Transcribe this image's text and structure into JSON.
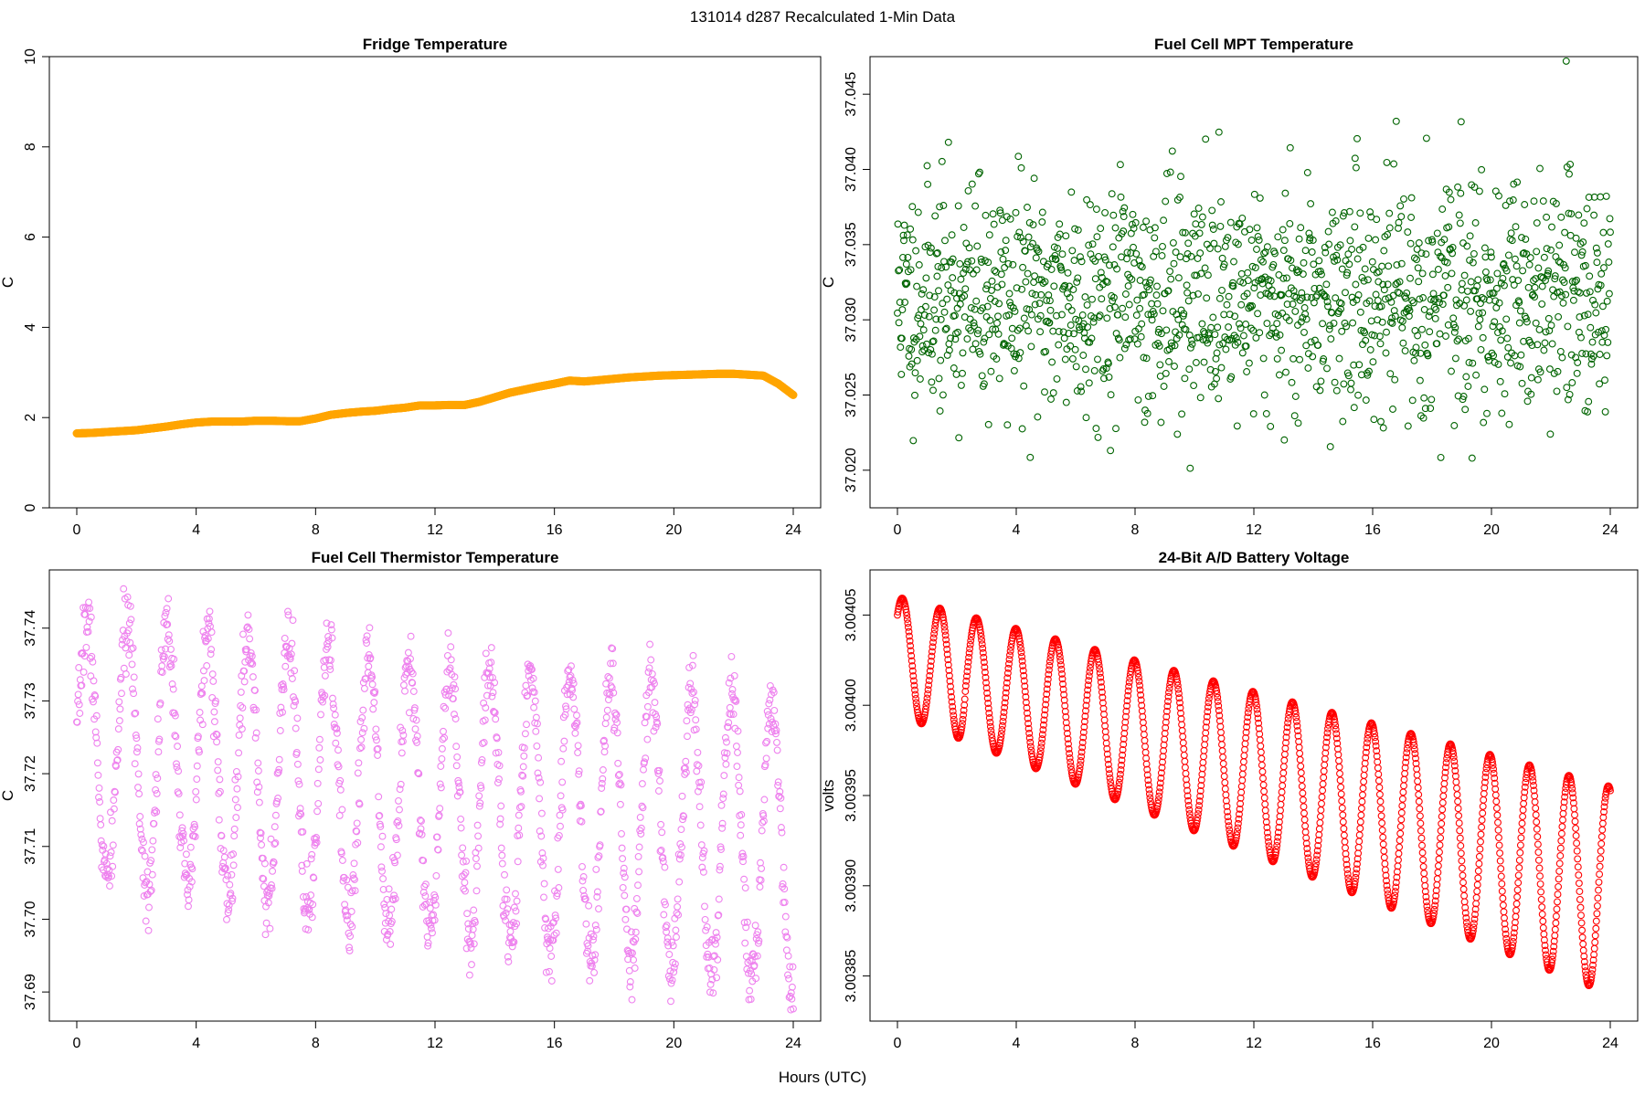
{
  "page": {
    "title": "131014   d287   Recalculated 1-Min Data",
    "shared_xlabel": "Hours (UTC)"
  },
  "chart_data": [
    {
      "type": "scatter",
      "title": "Fridge Temperature",
      "xlabel": "",
      "ylabel": "C",
      "xlim": [
        0,
        24
      ],
      "ylim": [
        0,
        10
      ],
      "xticks": [
        "0",
        "4",
        "8",
        "12",
        "16",
        "20",
        "24"
      ],
      "yticks": [
        "0",
        "2",
        "4",
        "6",
        "8",
        "10"
      ],
      "color": "#FFA500",
      "marker": "circle",
      "series": [
        {
          "x": [
            0,
            0.5,
            1,
            1.5,
            2,
            2.5,
            3,
            3.5,
            4,
            4.5,
            5,
            5.5,
            6,
            6.5,
            7,
            7.5,
            8,
            8.5,
            9,
            9.5,
            10,
            10.5,
            11,
            11.5,
            12,
            12.5,
            13,
            13.5,
            14,
            14.5,
            15,
            15.5,
            16,
            16.5,
            17,
            17.5,
            18,
            18.5,
            19,
            19.5,
            20,
            20.5,
            21,
            21.5,
            22,
            22.5,
            23,
            23.5,
            24
          ],
          "y": [
            1.65,
            1.66,
            1.68,
            1.7,
            1.72,
            1.76,
            1.8,
            1.85,
            1.89,
            1.91,
            1.91,
            1.91,
            1.93,
            1.93,
            1.92,
            1.92,
            1.98,
            2.06,
            2.1,
            2.13,
            2.15,
            2.19,
            2.22,
            2.27,
            2.27,
            2.28,
            2.28,
            2.35,
            2.45,
            2.55,
            2.62,
            2.69,
            2.75,
            2.82,
            2.8,
            2.83,
            2.86,
            2.89,
            2.91,
            2.93,
            2.94,
            2.95,
            2.96,
            2.97,
            2.97,
            2.95,
            2.93,
            2.75,
            2.5
          ]
        }
      ]
    },
    {
      "type": "scatter",
      "title": "Fuel Cell MPT Temperature",
      "xlabel": "",
      "ylabel": "C",
      "xlim": [
        0,
        24
      ],
      "ylim": [
        37.0175,
        37.0475
      ],
      "xticks": [
        "0",
        "4",
        "8",
        "12",
        "16",
        "20",
        "24"
      ],
      "yticks": [
        "37.020",
        "37.025",
        "37.030",
        "37.035",
        "37.040",
        "37.045"
      ],
      "color": "#006400",
      "marker": "circle-open",
      "noise_model": {
        "count": 1440,
        "x_range": [
          0,
          24
        ],
        "center": 37.0315,
        "sd": 0.0042,
        "seed": 11
      }
    },
    {
      "type": "scatter",
      "title": "Fuel Cell Thermistor Temperature",
      "xlabel": "",
      "ylabel": "C",
      "xlim": [
        0,
        24
      ],
      "ylim": [
        37.686,
        37.748
      ],
      "xticks": [
        "0",
        "4",
        "8",
        "12",
        "16",
        "20",
        "24"
      ],
      "yticks": [
        "37.69",
        "37.70",
        "37.71",
        "37.72",
        "37.73",
        "37.74"
      ],
      "color": "#EE82EE",
      "marker": "circle-open",
      "oscillation_model": {
        "count": 1440,
        "x_range": [
          0,
          24
        ],
        "period_hours": 1.35,
        "max_start": 37.741,
        "max_end": 37.73,
        "min_start": 37.706,
        "min_end": 37.69,
        "jitter": 0.0025,
        "seed": 7
      }
    },
    {
      "type": "scatter",
      "title": "24-Bit A/D Battery Voltage",
      "xlabel": "",
      "ylabel": "volts",
      "xlim": [
        0,
        24
      ],
      "ylim": [
        3.003825,
        3.004075
      ],
      "xticks": [
        "0",
        "4",
        "8",
        "12",
        "16",
        "20",
        "24"
      ],
      "yticks": [
        "3.00385",
        "3.00390",
        "3.00395",
        "3.00400",
        "3.00405"
      ],
      "color": "#FF0000",
      "marker": "circle-open",
      "oscillation_model": {
        "count": 1440,
        "x_range": [
          0,
          24
        ],
        "period_hours": 1.33,
        "start": 3.00405,
        "max_start": 3.00406,
        "max_end": 3.003955,
        "min_start": 3.003995,
        "min_end": 3.00384,
        "end": 3.003875
      }
    }
  ]
}
